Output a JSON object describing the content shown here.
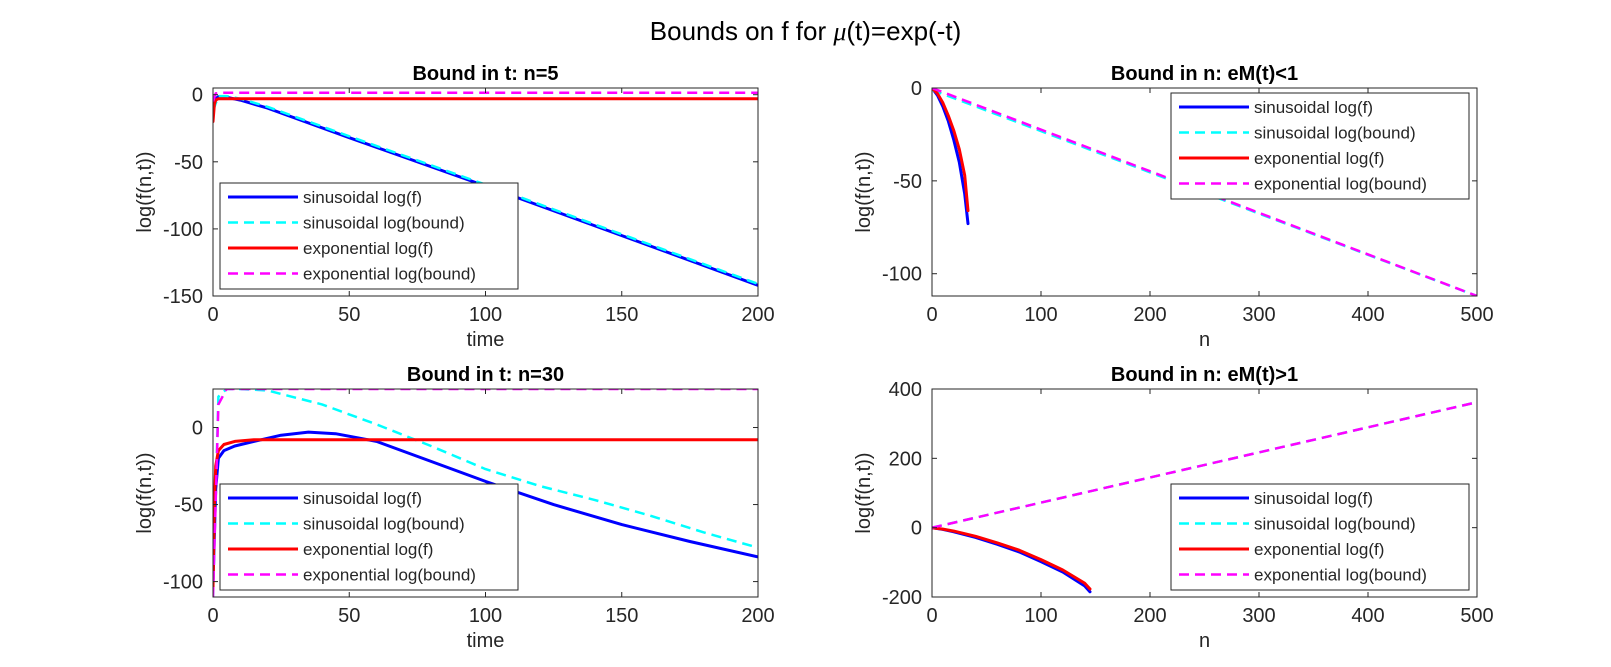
{
  "figure": {
    "title_prefix": "Bounds on f for ",
    "title_mu": "μ",
    "title_suffix": "(t)=exp(-t)"
  },
  "colors": {
    "sin_f": "#0000ff",
    "sin_bound": "#00ffff",
    "exp_f": "#ff0000",
    "exp_bound": "#ff00ff"
  },
  "chart_data": [
    {
      "id": "p1",
      "type": "line",
      "title": "Bound in t: n=5",
      "xlabel": "time",
      "ylabel": "log(f(n,t))",
      "xlim": [
        0,
        200
      ],
      "ylim": [
        -150,
        5
      ],
      "xticks": [
        0,
        50,
        100,
        150,
        200
      ],
      "yticks": [
        0,
        -50,
        -100,
        -150
      ],
      "legend": {
        "location": "bottom-left",
        "entries": [
          "sinusoidal log(f)",
          "sinusoidal log(bound)",
          "exponential log(f)",
          "exponential log(bound)"
        ]
      },
      "series": [
        {
          "name": "sinusoidal log(f)",
          "style": "solid",
          "color": "sin_f",
          "x": [
            0,
            0.5,
            1,
            2,
            4,
            10,
            20,
            50,
            100,
            150,
            200
          ],
          "y": [
            -15,
            -6,
            -3,
            -1.5,
            -1.5,
            -4,
            -10,
            -32,
            -68,
            -105,
            -142
          ]
        },
        {
          "name": "sinusoidal log(bound)",
          "style": "dashed",
          "color": "sin_bound",
          "x": [
            0,
            2,
            5,
            10,
            20,
            50,
            100,
            150,
            200
          ],
          "y": [
            -12,
            -1,
            -1,
            -3,
            -9,
            -31,
            -67,
            -104,
            -141
          ]
        },
        {
          "name": "exponential log(f)",
          "style": "solid",
          "color": "exp_f",
          "x": [
            0,
            0.5,
            1,
            2,
            4,
            10,
            200
          ],
          "y": [
            -20,
            -7,
            -4,
            -3,
            -3,
            -3,
            -3
          ]
        },
        {
          "name": "exponential log(bound)",
          "style": "dashed",
          "color": "exp_bound",
          "x": [
            0,
            1,
            3,
            200
          ],
          "y": [
            -5,
            1,
            1.5,
            1.5
          ]
        }
      ]
    },
    {
      "id": "p2",
      "type": "line",
      "title": "Bound in n: eM(t)<1",
      "xlabel": "n",
      "ylabel": "log(f(n,t))",
      "xlim": [
        0,
        500
      ],
      "ylim": [
        -112,
        0
      ],
      "xticks": [
        0,
        100,
        200,
        300,
        400,
        500
      ],
      "yticks": [
        0,
        -50,
        -100
      ],
      "legend": {
        "location": "top-right",
        "entries": [
          "sinusoidal log(f)",
          "sinusoidal log(bound)",
          "exponential log(f)",
          "exponential log(bound)"
        ]
      },
      "series": [
        {
          "name": "sinusoidal log(f)",
          "style": "solid",
          "color": "sin_f",
          "x": [
            0,
            5,
            10,
            15,
            20,
            25,
            30,
            33
          ],
          "y": [
            0,
            -4,
            -10,
            -18,
            -28,
            -40,
            -57,
            -73
          ]
        },
        {
          "name": "sinusoidal log(bound)",
          "style": "dashed",
          "color": "sin_bound",
          "x": [
            0,
            500
          ],
          "y": [
            -1,
            -112
          ]
        },
        {
          "name": "exponential log(f)",
          "style": "solid",
          "color": "exp_f",
          "x": [
            0,
            5,
            10,
            15,
            20,
            25,
            30,
            33
          ],
          "y": [
            0,
            -3,
            -8,
            -15,
            -23,
            -33,
            -47,
            -66
          ]
        },
        {
          "name": "exponential log(bound)",
          "style": "dashed",
          "color": "exp_bound",
          "x": [
            0,
            500
          ],
          "y": [
            0,
            -112
          ]
        }
      ]
    },
    {
      "id": "p3",
      "type": "line",
      "title": "Bound in t: n=30",
      "xlabel": "time",
      "ylabel": "log(f(n,t))",
      "xlim": [
        0,
        200
      ],
      "ylim": [
        -110,
        25
      ],
      "xticks": [
        0,
        50,
        100,
        150,
        200
      ],
      "yticks": [
        0,
        -50,
        -100
      ],
      "legend": {
        "location": "bottom-left",
        "entries": [
          "sinusoidal log(f)",
          "sinusoidal log(bound)",
          "exponential log(f)",
          "exponential log(bound)"
        ]
      },
      "series": [
        {
          "name": "sinusoidal log(f)",
          "style": "solid",
          "color": "sin_f",
          "x": [
            0,
            1,
            2,
            4,
            8,
            15,
            25,
            35,
            45,
            60,
            80,
            100,
            125,
            150,
            175,
            200
          ],
          "y": [
            -100,
            -40,
            -20,
            -15,
            -12,
            -9,
            -5,
            -3,
            -4,
            -9,
            -22,
            -35,
            -50,
            -63,
            -74,
            -84
          ]
        },
        {
          "name": "sinusoidal log(bound)",
          "style": "dashed",
          "color": "sin_bound",
          "x": [
            0,
            2,
            5,
            10,
            20,
            40,
            60,
            80,
            100,
            120,
            140,
            160,
            180,
            200
          ],
          "y": [
            -110,
            20,
            25,
            25,
            24,
            15,
            2,
            -12,
            -27,
            -38,
            -47,
            -57,
            -68,
            -78
          ]
        },
        {
          "name": "exponential log(f)",
          "style": "solid",
          "color": "exp_f",
          "x": [
            0,
            0.5,
            1,
            2,
            4,
            8,
            15,
            30,
            200
          ],
          "y": [
            -105,
            -50,
            -25,
            -15,
            -11,
            -9,
            -8,
            -8,
            -8
          ]
        },
        {
          "name": "exponential log(bound)",
          "style": "dashed",
          "color": "exp_bound",
          "x": [
            0,
            2,
            5,
            200
          ],
          "y": [
            -110,
            15,
            25,
            25
          ]
        }
      ]
    },
    {
      "id": "p4",
      "type": "line",
      "title": "Bound in n: eM(t)>1",
      "xlabel": "n",
      "ylabel": "log(f(n,t))",
      "xlim": [
        0,
        500
      ],
      "ylim": [
        -200,
        400
      ],
      "xticks": [
        0,
        100,
        200,
        300,
        400,
        500
      ],
      "yticks": [
        400,
        200,
        0,
        -200
      ],
      "legend": {
        "location": "bottom-right",
        "entries": [
          "sinusoidal log(f)",
          "sinusoidal log(bound)",
          "exponential log(f)",
          "exponential log(bound)"
        ]
      },
      "series": [
        {
          "name": "sinusoidal log(f)",
          "style": "solid",
          "color": "sin_f",
          "x": [
            0,
            10,
            20,
            40,
            60,
            80,
            100,
            120,
            140,
            145
          ],
          "y": [
            0,
            -5,
            -12,
            -28,
            -48,
            -70,
            -98,
            -128,
            -168,
            -185
          ]
        },
        {
          "name": "sinusoidal log(bound)",
          "style": "dashed",
          "color": "sin_bound",
          "x": [
            0,
            500
          ],
          "y": [
            0,
            362
          ]
        },
        {
          "name": "exponential log(f)",
          "style": "solid",
          "color": "exp_f",
          "x": [
            0,
            10,
            20,
            40,
            60,
            80,
            100,
            120,
            140,
            145
          ],
          "y": [
            0,
            -4,
            -10,
            -25,
            -44,
            -65,
            -92,
            -122,
            -160,
            -177
          ]
        },
        {
          "name": "exponential log(bound)",
          "style": "dashed",
          "color": "exp_bound",
          "x": [
            0,
            500
          ],
          "y": [
            0,
            362
          ]
        }
      ]
    }
  ]
}
